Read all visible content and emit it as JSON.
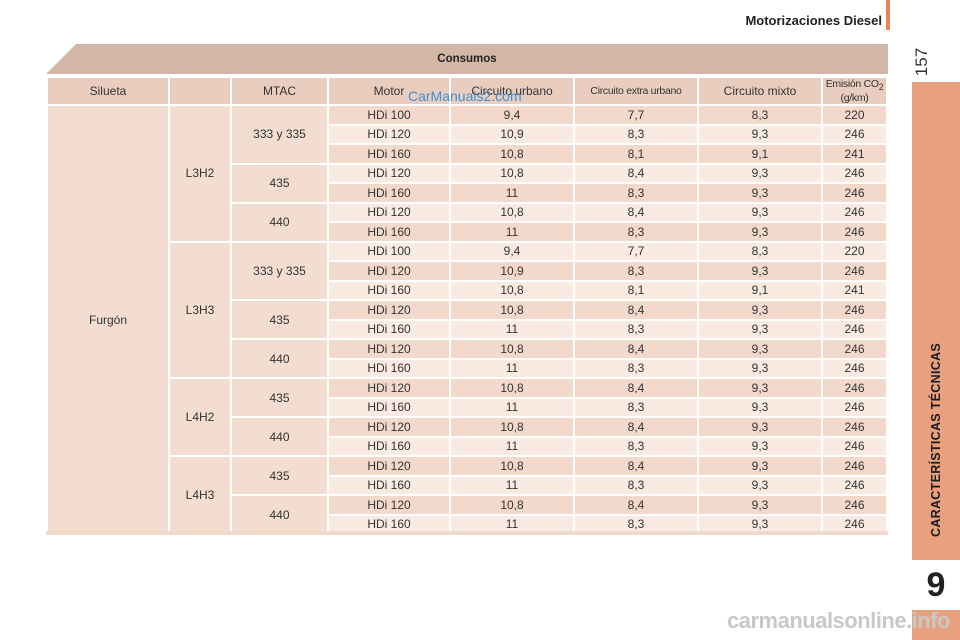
{
  "header": {
    "section": "Motorizaciones Diesel",
    "page_number": "157"
  },
  "side_tab": {
    "label": "CARACTERÍSTICAS TÉCNICAS",
    "chapter": "9"
  },
  "table": {
    "title": "Consumos",
    "headers": [
      "Silueta",
      "MTAC",
      "Motor",
      "Circuito urbano",
      "Circuito extra urbano",
      "Circuito mixto",
      "Emisión CO",
      "2",
      " (g/km)"
    ],
    "silueta": "Furgón",
    "rows": [
      [
        "L3H2",
        "333 y 335",
        "HDi 100",
        "9,4",
        "7,7",
        "8,3",
        "220"
      ],
      [
        "",
        "",
        "HDi 120",
        "10,9",
        "8,3",
        "9,3",
        "246"
      ],
      [
        "",
        "",
        "HDi 160",
        "10,8",
        "8,1",
        "9,1",
        "241"
      ],
      [
        "",
        "435",
        "HDi 120",
        "10,8",
        "8,4",
        "9,3",
        "246"
      ],
      [
        "",
        "",
        "HDi 160",
        "11",
        "8,3",
        "9,3",
        "246"
      ],
      [
        "",
        "440",
        "HDi 120",
        "10,8",
        "8,4",
        "9,3",
        "246"
      ],
      [
        "",
        "",
        "HDi 160",
        "11",
        "8,3",
        "9,3",
        "246"
      ],
      [
        "L3H3",
        "333 y 335",
        "HDi 100",
        "9,4",
        "7,7",
        "8,3",
        "220"
      ],
      [
        "",
        "",
        "HDi 120",
        "10,9",
        "8,3",
        "9,3",
        "246"
      ],
      [
        "",
        "",
        "HDi 160",
        "10,8",
        "8,1",
        "9,1",
        "241"
      ],
      [
        "",
        "435",
        "HDi 120",
        "10,8",
        "8,4",
        "9,3",
        "246"
      ],
      [
        "",
        "",
        "HDi 160",
        "11",
        "8,3",
        "9,3",
        "246"
      ],
      [
        "",
        "440",
        "HDi 120",
        "10,8",
        "8,4",
        "9,3",
        "246"
      ],
      [
        "",
        "",
        "HDi 160",
        "11",
        "8,3",
        "9,3",
        "246"
      ],
      [
        "L4H2",
        "435",
        "HDi 120",
        "10,8",
        "8,4",
        "9,3",
        "246"
      ],
      [
        "",
        "",
        "HDi 160",
        "11",
        "8,3",
        "9,3",
        "246"
      ],
      [
        "",
        "440",
        "HDi 120",
        "10,8",
        "8,4",
        "9,3",
        "246"
      ],
      [
        "",
        "",
        "HDi 160",
        "11",
        "8,3",
        "9,3",
        "246"
      ],
      [
        "L4H3",
        "435",
        "HDi 120",
        "10,8",
        "8,4",
        "9,3",
        "246"
      ],
      [
        "",
        "",
        "HDi 160",
        "11",
        "8,3",
        "9,3",
        "246"
      ],
      [
        "",
        "440",
        "HDi 120",
        "10,8",
        "8,4",
        "9,3",
        "246"
      ],
      [
        "",
        "",
        "HDi 160",
        "11",
        "8,3",
        "9,3",
        "246"
      ]
    ]
  },
  "watermarks": {
    "top": "CarManuals2.com",
    "bottom": "carmanualsonline.info"
  }
}
